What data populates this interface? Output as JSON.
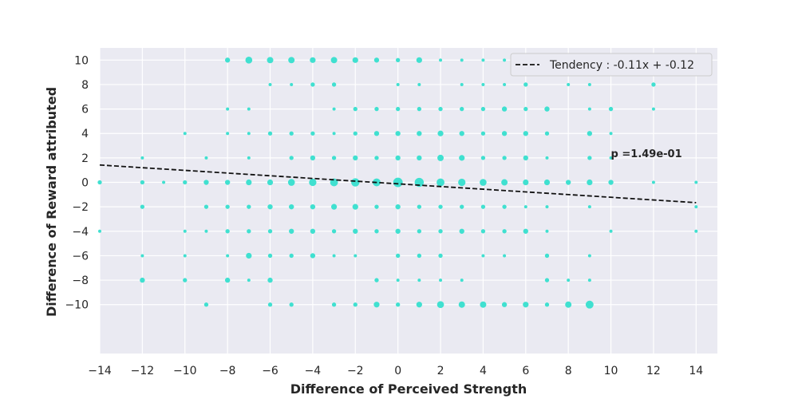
{
  "chart_data": {
    "type": "scatter",
    "xlabel": "Difference of Perceived Strength",
    "ylabel": "Difference of Reward attributed",
    "xlim": [
      -14,
      15
    ],
    "ylim": [
      -14,
      11
    ],
    "xticks": [
      -14,
      -12,
      -10,
      -8,
      -6,
      -4,
      -2,
      0,
      2,
      4,
      6,
      8,
      10,
      12,
      14
    ],
    "yticks": [
      -10,
      -8,
      -6,
      -4,
      -2,
      0,
      2,
      4,
      6,
      8,
      10
    ],
    "grid": true,
    "legend_position": "top-right",
    "legend_label": "Tendency : -0.11x + -0.12",
    "annotation": {
      "text": "p =1.49e-01",
      "x": 10,
      "y": 2
    },
    "trend": {
      "slope": -0.11,
      "intercept": -0.12,
      "x_range": [
        -14,
        14
      ]
    },
    "colors": {
      "points": "#40e0d0",
      "trend": "#111111",
      "plot_bg": "#eaeaf2",
      "grid": "#ffffff"
    },
    "points": [
      {
        "x": -8,
        "y": 10,
        "n": 3
      },
      {
        "x": -7,
        "y": 10,
        "n": 6
      },
      {
        "x": -6,
        "y": 10,
        "n": 5
      },
      {
        "x": -5,
        "y": 10,
        "n": 5
      },
      {
        "x": -4,
        "y": 10,
        "n": 4
      },
      {
        "x": -3,
        "y": 10,
        "n": 5
      },
      {
        "x": -2,
        "y": 10,
        "n": 4
      },
      {
        "x": -1,
        "y": 10,
        "n": 3
      },
      {
        "x": 0,
        "y": 10,
        "n": 2
      },
      {
        "x": 1,
        "y": 10,
        "n": 4
      },
      {
        "x": 2,
        "y": 10,
        "n": 1
      },
      {
        "x": 3,
        "y": 10,
        "n": 1
      },
      {
        "x": 4,
        "y": 10,
        "n": 1
      },
      {
        "x": 5,
        "y": 10,
        "n": 1
      },
      {
        "x": -6,
        "y": 8,
        "n": 1
      },
      {
        "x": -5,
        "y": 8,
        "n": 1
      },
      {
        "x": -4,
        "y": 8,
        "n": 2
      },
      {
        "x": -3,
        "y": 8,
        "n": 2
      },
      {
        "x": 0,
        "y": 8,
        "n": 1
      },
      {
        "x": 1,
        "y": 8,
        "n": 1
      },
      {
        "x": 3,
        "y": 8,
        "n": 1
      },
      {
        "x": 4,
        "y": 8,
        "n": 1
      },
      {
        "x": 5,
        "y": 8,
        "n": 1
      },
      {
        "x": 6,
        "y": 8,
        "n": 2
      },
      {
        "x": 8,
        "y": 8,
        "n": 1
      },
      {
        "x": 9,
        "y": 8,
        "n": 1
      },
      {
        "x": 12,
        "y": 8,
        "n": 2
      },
      {
        "x": -8,
        "y": 6,
        "n": 1
      },
      {
        "x": -7,
        "y": 6,
        "n": 1
      },
      {
        "x": -3,
        "y": 6,
        "n": 1
      },
      {
        "x": -2,
        "y": 6,
        "n": 2
      },
      {
        "x": -1,
        "y": 6,
        "n": 2
      },
      {
        "x": 0,
        "y": 6,
        "n": 2
      },
      {
        "x": 1,
        "y": 6,
        "n": 2
      },
      {
        "x": 2,
        "y": 6,
        "n": 2
      },
      {
        "x": 3,
        "y": 6,
        "n": 2
      },
      {
        "x": 4,
        "y": 6,
        "n": 2
      },
      {
        "x": 5,
        "y": 6,
        "n": 3
      },
      {
        "x": 6,
        "y": 6,
        "n": 2
      },
      {
        "x": 7,
        "y": 6,
        "n": 3
      },
      {
        "x": 9,
        "y": 6,
        "n": 1
      },
      {
        "x": 10,
        "y": 6,
        "n": 2
      },
      {
        "x": 12,
        "y": 6,
        "n": 1
      },
      {
        "x": -10,
        "y": 4,
        "n": 1
      },
      {
        "x": -8,
        "y": 4,
        "n": 1
      },
      {
        "x": -7,
        "y": 4,
        "n": 1
      },
      {
        "x": -6,
        "y": 4,
        "n": 2
      },
      {
        "x": -5,
        "y": 4,
        "n": 2
      },
      {
        "x": -4,
        "y": 4,
        "n": 2
      },
      {
        "x": -3,
        "y": 4,
        "n": 1
      },
      {
        "x": -2,
        "y": 4,
        "n": 2
      },
      {
        "x": -1,
        "y": 4,
        "n": 3
      },
      {
        "x": 0,
        "y": 4,
        "n": 3
      },
      {
        "x": 1,
        "y": 4,
        "n": 3
      },
      {
        "x": 2,
        "y": 4,
        "n": 4
      },
      {
        "x": 3,
        "y": 4,
        "n": 3
      },
      {
        "x": 4,
        "y": 4,
        "n": 2
      },
      {
        "x": 5,
        "y": 4,
        "n": 3
      },
      {
        "x": 6,
        "y": 4,
        "n": 3
      },
      {
        "x": 7,
        "y": 4,
        "n": 2
      },
      {
        "x": 9,
        "y": 4,
        "n": 3
      },
      {
        "x": 10,
        "y": 4,
        "n": 1
      },
      {
        "x": -12,
        "y": 2,
        "n": 1
      },
      {
        "x": -9,
        "y": 2,
        "n": 1
      },
      {
        "x": -7,
        "y": 2,
        "n": 1
      },
      {
        "x": -5,
        "y": 2,
        "n": 2
      },
      {
        "x": -4,
        "y": 2,
        "n": 3
      },
      {
        "x": -3,
        "y": 2,
        "n": 2
      },
      {
        "x": -2,
        "y": 2,
        "n": 3
      },
      {
        "x": -1,
        "y": 2,
        "n": 2
      },
      {
        "x": 0,
        "y": 2,
        "n": 3
      },
      {
        "x": 1,
        "y": 2,
        "n": 3
      },
      {
        "x": 2,
        "y": 2,
        "n": 5
      },
      {
        "x": 3,
        "y": 2,
        "n": 4
      },
      {
        "x": 4,
        "y": 2,
        "n": 2
      },
      {
        "x": 5,
        "y": 2,
        "n": 2
      },
      {
        "x": 6,
        "y": 2,
        "n": 3
      },
      {
        "x": 7,
        "y": 2,
        "n": 1
      },
      {
        "x": 9,
        "y": 2,
        "n": 2
      },
      {
        "x": 10,
        "y": 2,
        "n": 1
      },
      {
        "x": -14,
        "y": 0,
        "n": 2
      },
      {
        "x": -12,
        "y": 0,
        "n": 2
      },
      {
        "x": -11,
        "y": 0,
        "n": 1
      },
      {
        "x": -10,
        "y": 0,
        "n": 2
      },
      {
        "x": -9,
        "y": 0,
        "n": 3
      },
      {
        "x": -8,
        "y": 0,
        "n": 3
      },
      {
        "x": -7,
        "y": 0,
        "n": 4
      },
      {
        "x": -6,
        "y": 0,
        "n": 4
      },
      {
        "x": -5,
        "y": 0,
        "n": 6
      },
      {
        "x": -4,
        "y": 0,
        "n": 7
      },
      {
        "x": -3,
        "y": 0,
        "n": 8
      },
      {
        "x": -2,
        "y": 0,
        "n": 9
      },
      {
        "x": -1,
        "y": 0,
        "n": 8
      },
      {
        "x": 0,
        "y": 0,
        "n": 12
      },
      {
        "x": 1,
        "y": 0,
        "n": 11
      },
      {
        "x": 2,
        "y": 0,
        "n": 8
      },
      {
        "x": 3,
        "y": 0,
        "n": 7
      },
      {
        "x": 4,
        "y": 0,
        "n": 6
      },
      {
        "x": 5,
        "y": 0,
        "n": 5
      },
      {
        "x": 6,
        "y": 0,
        "n": 4
      },
      {
        "x": 7,
        "y": 0,
        "n": 4
      },
      {
        "x": 8,
        "y": 0,
        "n": 3
      },
      {
        "x": 9,
        "y": 0,
        "n": 4
      },
      {
        "x": 10,
        "y": 0,
        "n": 3
      },
      {
        "x": 12,
        "y": 0,
        "n": 1
      },
      {
        "x": 14,
        "y": 0,
        "n": 1
      },
      {
        "x": -12,
        "y": -2,
        "n": 2
      },
      {
        "x": -9,
        "y": -2,
        "n": 2
      },
      {
        "x": -8,
        "y": -2,
        "n": 2
      },
      {
        "x": -7,
        "y": -2,
        "n": 2
      },
      {
        "x": -6,
        "y": -2,
        "n": 3
      },
      {
        "x": -5,
        "y": -2,
        "n": 3
      },
      {
        "x": -4,
        "y": -2,
        "n": 3
      },
      {
        "x": -3,
        "y": -2,
        "n": 4
      },
      {
        "x": -2,
        "y": -2,
        "n": 4
      },
      {
        "x": -1,
        "y": -2,
        "n": 2
      },
      {
        "x": 0,
        "y": -2,
        "n": 3
      },
      {
        "x": 1,
        "y": -2,
        "n": 2
      },
      {
        "x": 2,
        "y": -2,
        "n": 2
      },
      {
        "x": 3,
        "y": -2,
        "n": 2
      },
      {
        "x": 4,
        "y": -2,
        "n": 2
      },
      {
        "x": 5,
        "y": -2,
        "n": 2
      },
      {
        "x": 6,
        "y": -2,
        "n": 1
      },
      {
        "x": 7,
        "y": -2,
        "n": 1
      },
      {
        "x": 9,
        "y": -2,
        "n": 1
      },
      {
        "x": 14,
        "y": -2,
        "n": 1
      },
      {
        "x": -14,
        "y": -4,
        "n": 1
      },
      {
        "x": -10,
        "y": -4,
        "n": 1
      },
      {
        "x": -9,
        "y": -4,
        "n": 1
      },
      {
        "x": -8,
        "y": -4,
        "n": 2
      },
      {
        "x": -7,
        "y": -4,
        "n": 2
      },
      {
        "x": -6,
        "y": -4,
        "n": 2
      },
      {
        "x": -5,
        "y": -4,
        "n": 3
      },
      {
        "x": -4,
        "y": -4,
        "n": 3
      },
      {
        "x": -3,
        "y": -4,
        "n": 2
      },
      {
        "x": -2,
        "y": -4,
        "n": 3
      },
      {
        "x": -1,
        "y": -4,
        "n": 2
      },
      {
        "x": 0,
        "y": -4,
        "n": 3
      },
      {
        "x": 1,
        "y": -4,
        "n": 2
      },
      {
        "x": 2,
        "y": -4,
        "n": 2
      },
      {
        "x": 3,
        "y": -4,
        "n": 3
      },
      {
        "x": 4,
        "y": -4,
        "n": 2
      },
      {
        "x": 5,
        "y": -4,
        "n": 2
      },
      {
        "x": 6,
        "y": -4,
        "n": 3
      },
      {
        "x": 7,
        "y": -4,
        "n": 1
      },
      {
        "x": 10,
        "y": -4,
        "n": 1
      },
      {
        "x": 14,
        "y": -4,
        "n": 1
      },
      {
        "x": -12,
        "y": -6,
        "n": 1
      },
      {
        "x": -10,
        "y": -6,
        "n": 1
      },
      {
        "x": -8,
        "y": -6,
        "n": 1
      },
      {
        "x": -7,
        "y": -6,
        "n": 4
      },
      {
        "x": -6,
        "y": -6,
        "n": 2
      },
      {
        "x": -5,
        "y": -6,
        "n": 2
      },
      {
        "x": -4,
        "y": -6,
        "n": 3
      },
      {
        "x": -3,
        "y": -6,
        "n": 1
      },
      {
        "x": -2,
        "y": -6,
        "n": 1
      },
      {
        "x": 0,
        "y": -6,
        "n": 2
      },
      {
        "x": 1,
        "y": -6,
        "n": 2
      },
      {
        "x": 2,
        "y": -6,
        "n": 2
      },
      {
        "x": 4,
        "y": -6,
        "n": 1
      },
      {
        "x": 5,
        "y": -6,
        "n": 1
      },
      {
        "x": 7,
        "y": -6,
        "n": 2
      },
      {
        "x": 9,
        "y": -6,
        "n": 1
      },
      {
        "x": -12,
        "y": -8,
        "n": 3
      },
      {
        "x": -10,
        "y": -8,
        "n": 2
      },
      {
        "x": -8,
        "y": -8,
        "n": 3
      },
      {
        "x": -7,
        "y": -8,
        "n": 1
      },
      {
        "x": -6,
        "y": -8,
        "n": 3
      },
      {
        "x": -1,
        "y": -8,
        "n": 2
      },
      {
        "x": 0,
        "y": -8,
        "n": 1
      },
      {
        "x": 1,
        "y": -8,
        "n": 1
      },
      {
        "x": 2,
        "y": -8,
        "n": 1
      },
      {
        "x": 3,
        "y": -8,
        "n": 1
      },
      {
        "x": 7,
        "y": -8,
        "n": 2
      },
      {
        "x": 8,
        "y": -8,
        "n": 1
      },
      {
        "x": 9,
        "y": -8,
        "n": 1
      },
      {
        "x": -9,
        "y": -10,
        "n": 2
      },
      {
        "x": -6,
        "y": -10,
        "n": 2
      },
      {
        "x": -5,
        "y": -10,
        "n": 2
      },
      {
        "x": -3,
        "y": -10,
        "n": 2
      },
      {
        "x": -2,
        "y": -10,
        "n": 2
      },
      {
        "x": -1,
        "y": -10,
        "n": 4
      },
      {
        "x": 0,
        "y": -10,
        "n": 2
      },
      {
        "x": 1,
        "y": -10,
        "n": 4
      },
      {
        "x": 2,
        "y": -10,
        "n": 6
      },
      {
        "x": 3,
        "y": -10,
        "n": 5
      },
      {
        "x": 4,
        "y": -10,
        "n": 5
      },
      {
        "x": 5,
        "y": -10,
        "n": 3
      },
      {
        "x": 6,
        "y": -10,
        "n": 4
      },
      {
        "x": 7,
        "y": -10,
        "n": 2
      },
      {
        "x": 8,
        "y": -10,
        "n": 5
      },
      {
        "x": 9,
        "y": -10,
        "n": 8
      }
    ]
  }
}
